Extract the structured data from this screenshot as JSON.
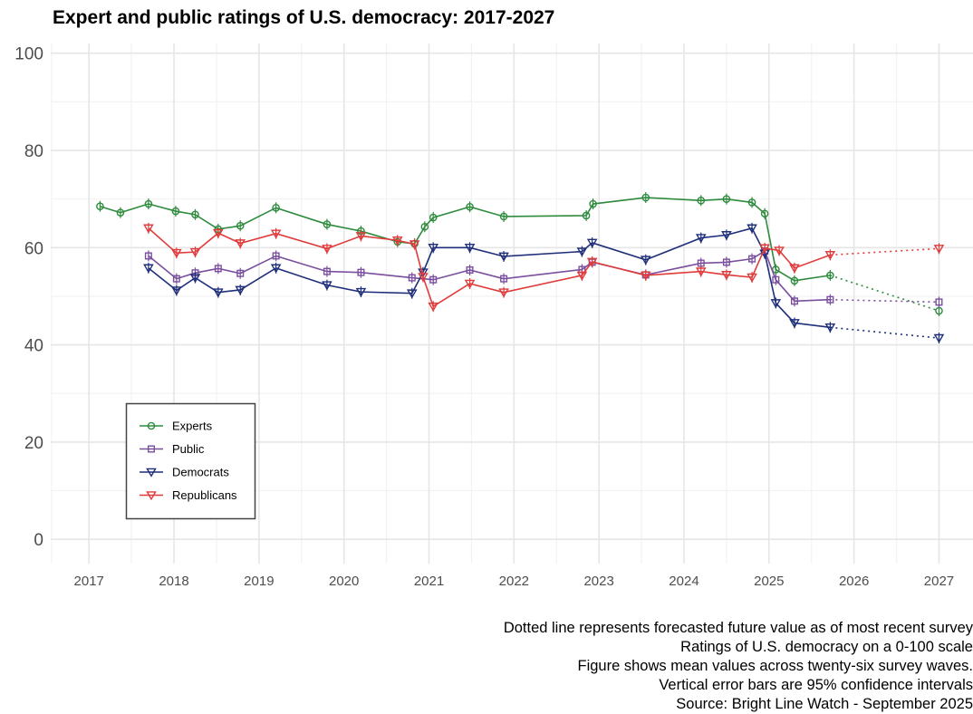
{
  "chart_data": {
    "type": "line",
    "title": "Expert and public ratings of U.S. democracy: 2017-2027",
    "xlabel": "",
    "ylabel": "",
    "xlim": [
      2016.55,
      2027.4
    ],
    "ylim": [
      -5,
      102
    ],
    "x_ticks": [
      2017,
      2018,
      2019,
      2020,
      2021,
      2022,
      2023,
      2024,
      2025,
      2026,
      2027
    ],
    "y_ticks": [
      0,
      20,
      40,
      60,
      80,
      100
    ],
    "grid": true,
    "legend_position": "bottom-left",
    "series": [
      {
        "name": "Experts",
        "color": "#2e8b3e",
        "marker": "circle",
        "points": [
          [
            2017.13,
            68.5
          ],
          [
            2017.37,
            67.2
          ],
          [
            2017.7,
            69.0
          ],
          [
            2018.02,
            67.5
          ],
          [
            2018.25,
            66.8
          ],
          [
            2018.52,
            63.8
          ],
          [
            2018.78,
            64.5
          ],
          [
            2019.2,
            68.2
          ],
          [
            2019.8,
            64.8
          ],
          [
            2020.2,
            63.4
          ],
          [
            2020.63,
            61.2
          ],
          [
            2020.83,
            60.8
          ],
          [
            2020.95,
            64.3
          ],
          [
            2021.05,
            66.2
          ],
          [
            2021.48,
            68.4
          ],
          [
            2021.88,
            66.4
          ],
          [
            2022.85,
            66.6
          ],
          [
            2022.93,
            69.0
          ],
          [
            2023.55,
            70.3
          ],
          [
            2024.2,
            69.7
          ],
          [
            2024.5,
            70.0
          ],
          [
            2024.8,
            69.3
          ],
          [
            2024.95,
            67.0
          ],
          [
            2025.08,
            55.5
          ],
          [
            2025.3,
            53.2
          ],
          [
            2025.72,
            54.3
          ]
        ],
        "forecast": [
          [
            2025.72,
            54.3
          ],
          [
            2027.0,
            47.0
          ]
        ]
      },
      {
        "name": "Public",
        "color": "#7a4f9e",
        "marker": "square",
        "points": [
          [
            2017.7,
            58.3
          ],
          [
            2018.03,
            53.6
          ],
          [
            2018.25,
            54.8
          ],
          [
            2018.52,
            55.7
          ],
          [
            2018.78,
            54.7
          ],
          [
            2019.2,
            58.3
          ],
          [
            2019.8,
            55.1
          ],
          [
            2020.2,
            54.9
          ],
          [
            2020.8,
            53.8
          ],
          [
            2021.05,
            53.4
          ],
          [
            2021.48,
            55.4
          ],
          [
            2021.88,
            53.6
          ],
          [
            2022.8,
            55.5
          ],
          [
            2022.92,
            57.0
          ],
          [
            2023.55,
            54.4
          ],
          [
            2024.2,
            56.8
          ],
          [
            2024.5,
            57.0
          ],
          [
            2024.8,
            57.7
          ],
          [
            2024.95,
            59.3
          ],
          [
            2025.08,
            53.4
          ],
          [
            2025.3,
            49.0
          ],
          [
            2025.72,
            49.3
          ]
        ],
        "forecast": [
          [
            2025.72,
            49.3
          ],
          [
            2027.0,
            48.8
          ]
        ]
      },
      {
        "name": "Democrats",
        "color": "#1f2f7a",
        "marker": "triangle-down",
        "points": [
          [
            2017.7,
            55.8
          ],
          [
            2018.03,
            51.2
          ],
          [
            2018.25,
            53.8
          ],
          [
            2018.52,
            50.8
          ],
          [
            2018.78,
            51.3
          ],
          [
            2019.2,
            55.8
          ],
          [
            2019.8,
            52.3
          ],
          [
            2020.2,
            50.9
          ],
          [
            2020.8,
            50.6
          ],
          [
            2020.93,
            54.9
          ],
          [
            2021.05,
            60.0
          ],
          [
            2021.48,
            60.0
          ],
          [
            2021.88,
            58.2
          ],
          [
            2022.8,
            59.2
          ],
          [
            2022.92,
            61.0
          ],
          [
            2023.55,
            57.5
          ],
          [
            2024.2,
            62.0
          ],
          [
            2024.5,
            62.6
          ],
          [
            2024.8,
            64.0
          ],
          [
            2024.95,
            58.8
          ],
          [
            2025.08,
            48.6
          ],
          [
            2025.3,
            44.5
          ],
          [
            2025.72,
            43.6
          ]
        ],
        "forecast": [
          [
            2025.72,
            43.6
          ],
          [
            2027.0,
            41.4
          ]
        ]
      },
      {
        "name": "Republicans",
        "color": "#e03b3b",
        "marker": "triangle-down",
        "points": [
          [
            2017.7,
            64.0
          ],
          [
            2018.03,
            58.9
          ],
          [
            2018.25,
            59.1
          ],
          [
            2018.52,
            63.0
          ],
          [
            2018.78,
            60.9
          ],
          [
            2019.2,
            62.9
          ],
          [
            2019.8,
            59.8
          ],
          [
            2020.2,
            62.4
          ],
          [
            2020.63,
            61.5
          ],
          [
            2020.83,
            60.7
          ],
          [
            2020.93,
            54.0
          ],
          [
            2021.05,
            47.9
          ],
          [
            2021.48,
            52.6
          ],
          [
            2021.88,
            50.8
          ],
          [
            2022.8,
            54.3
          ],
          [
            2022.92,
            57.1
          ],
          [
            2023.55,
            54.3
          ],
          [
            2024.2,
            55.1
          ],
          [
            2024.5,
            54.4
          ],
          [
            2024.8,
            53.9
          ],
          [
            2024.95,
            59.9
          ],
          [
            2025.12,
            59.4
          ],
          [
            2025.3,
            55.8
          ],
          [
            2025.72,
            58.5
          ]
        ],
        "forecast": [
          [
            2025.72,
            58.5
          ],
          [
            2027.0,
            59.8
          ]
        ]
      }
    ],
    "caption_lines": [
      "Dotted line represents forecasted future value as of most recent survey",
      "Ratings of U.S. democracy on a 0-100 scale",
      "Figure shows mean values across twenty-six survey waves.",
      "Vertical error bars are 95% confidence intervals",
      "Source: Bright Line Watch - September 2025"
    ]
  }
}
